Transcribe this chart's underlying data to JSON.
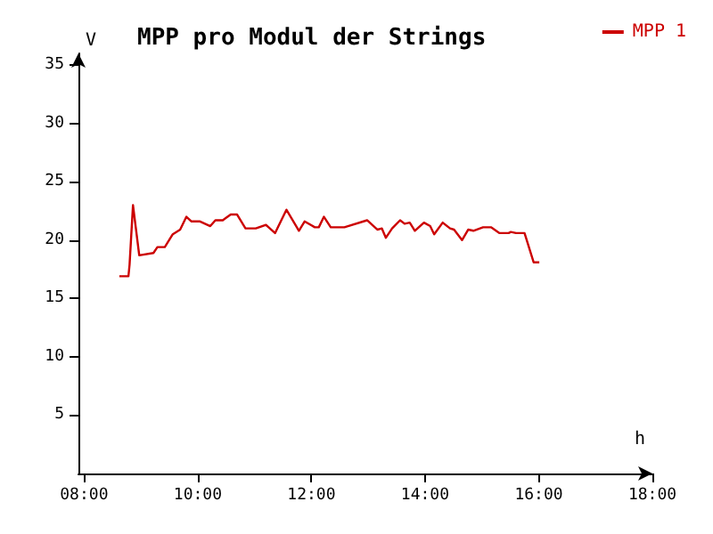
{
  "chart_data": {
    "type": "line",
    "title": "MPP pro Modul der Strings",
    "xlabel": "h",
    "ylabel": "V",
    "xlim": [
      7.9,
      18
    ],
    "ylim": [
      0,
      36
    ],
    "xticks": [
      {
        "value": 8,
        "label": "08:00"
      },
      {
        "value": 10,
        "label": "10:00"
      },
      {
        "value": 12,
        "label": "12:00"
      },
      {
        "value": 14,
        "label": "14:00"
      },
      {
        "value": 16,
        "label": "16:00"
      },
      {
        "value": 18,
        "label": "18:00"
      }
    ],
    "yticks": [
      5,
      10,
      15,
      20,
      25,
      30,
      35
    ],
    "grid": false,
    "legend": "top right",
    "marker": "none",
    "line_style": "solid",
    "series": [
      {
        "name": "MPP 1",
        "color": "#cc0000",
        "x": [
          8.62,
          8.78,
          8.8,
          8.86,
          8.97,
          9.22,
          9.29,
          9.42,
          9.56,
          9.69,
          9.8,
          9.89,
          10.04,
          10.22,
          10.31,
          10.44,
          10.58,
          10.69,
          10.84,
          11.02,
          11.2,
          11.36,
          11.56,
          11.78,
          11.88,
          12.06,
          12.13,
          12.22,
          12.34,
          12.58,
          12.98,
          13.16,
          13.24,
          13.31,
          13.42,
          13.56,
          13.64,
          13.73,
          13.82,
          13.98,
          14.09,
          14.16,
          14.31,
          14.44,
          14.51,
          14.65,
          14.76,
          14.85,
          15.02,
          15.16,
          15.31,
          15.47,
          15.51,
          15.6,
          15.75,
          15.91,
          16.01
        ],
        "values": [
          16.9,
          16.9,
          17.9,
          23.0,
          18.7,
          18.9,
          19.4,
          19.4,
          20.5,
          20.9,
          22.0,
          21.6,
          21.6,
          21.2,
          21.7,
          21.7,
          22.2,
          22.2,
          21.0,
          21.0,
          21.3,
          20.6,
          22.6,
          20.8,
          21.6,
          21.1,
          21.1,
          22.0,
          21.1,
          21.1,
          21.7,
          20.9,
          21.0,
          20.2,
          21.0,
          21.7,
          21.4,
          21.5,
          20.8,
          21.5,
          21.2,
          20.5,
          21.5,
          21.0,
          20.9,
          20.0,
          20.9,
          20.8,
          21.1,
          21.1,
          20.6,
          20.6,
          20.7,
          20.6,
          20.6,
          18.1,
          18.1
        ]
      }
    ]
  }
}
